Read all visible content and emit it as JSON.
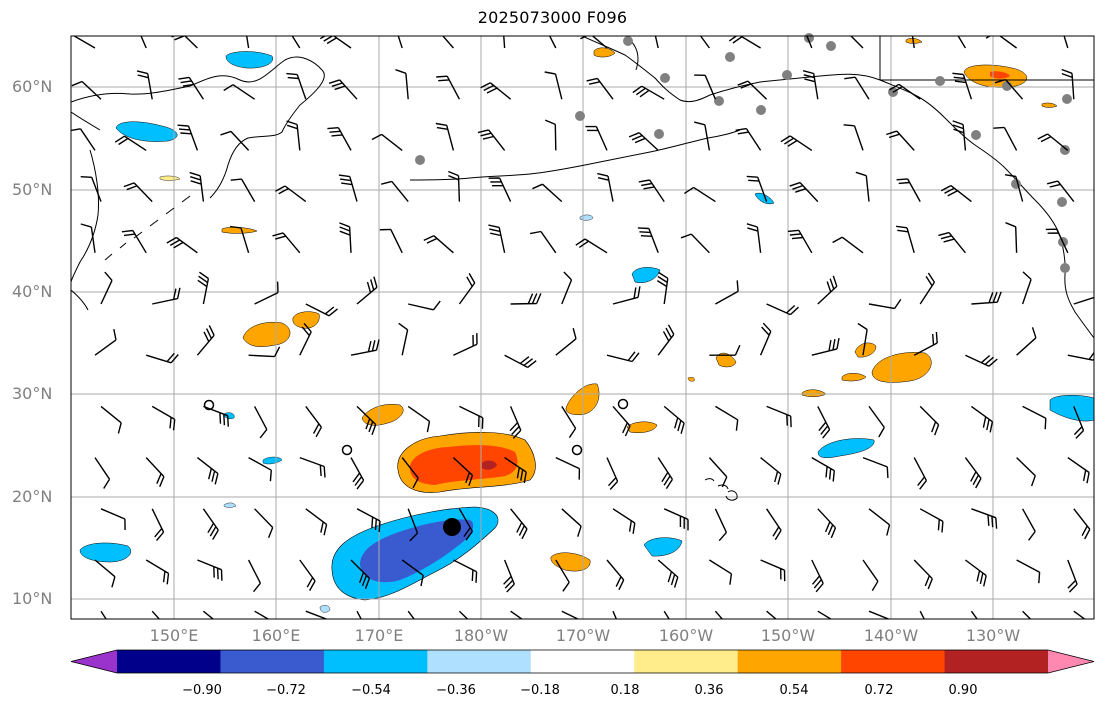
{
  "title": "2025073000 F096",
  "lat_labels": [
    "60°N",
    "50°N",
    "40°N",
    "30°N",
    "20°N",
    "10°N"
  ],
  "lon_labels": [
    "150°E",
    "160°E",
    "170°E",
    "180°W",
    "170°W",
    "160°W",
    "150°W",
    "140°W",
    "130°W"
  ],
  "colorbar": {
    "ticks": [
      "−0.90",
      "−0.72",
      "−0.54",
      "−0.36",
      "−0.18",
      "0.18",
      "0.36",
      "0.54",
      "0.72",
      "0.90"
    ],
    "colors": [
      "#9933cc",
      "#00008b",
      "#3a5bd0",
      "#00bfff",
      "#b0e0ff",
      "#ffffff",
      "#ffec8b",
      "#ffa500",
      "#ff4500",
      "#b22222",
      "#ff88b0"
    ]
  }
}
